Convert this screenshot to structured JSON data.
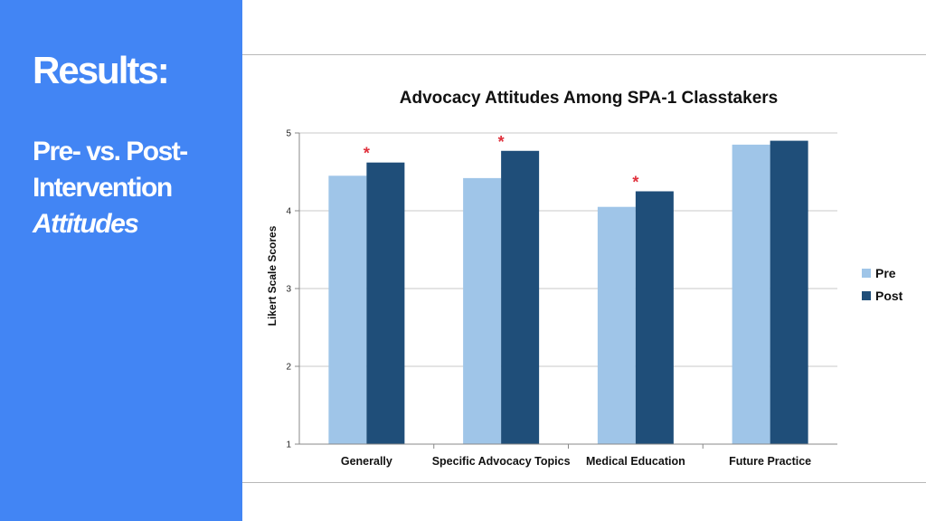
{
  "slide": {
    "title": "Results:",
    "subtitle_line1": "Pre- vs. Post-",
    "subtitle_line2": "Intervention",
    "subtitle_line3": "Attitudes",
    "panel_color": "#4285f4"
  },
  "chart_data": {
    "type": "bar",
    "title": "Advocacy Attitudes Among SPA-1 Classtakers",
    "xlabel": "",
    "ylabel": "Likert Scale Scores",
    "ylim": [
      1,
      5
    ],
    "yticks": [
      1,
      2,
      3,
      4,
      5
    ],
    "grid": true,
    "legend_position": "right",
    "categories": [
      "Generally",
      "Specific Advocacy Topics",
      "Medical Education",
      "Future Practice"
    ],
    "series": [
      {
        "name": "Pre",
        "color": "#9fc5e8",
        "values": [
          4.45,
          4.42,
          4.05,
          4.85
        ]
      },
      {
        "name": "Post",
        "color": "#1f4e79",
        "values": [
          4.62,
          4.77,
          4.25,
          4.9
        ]
      }
    ],
    "significance_marker": "*",
    "significant": [
      true,
      true,
      true,
      false
    ],
    "significance_color": "#e0303c"
  }
}
